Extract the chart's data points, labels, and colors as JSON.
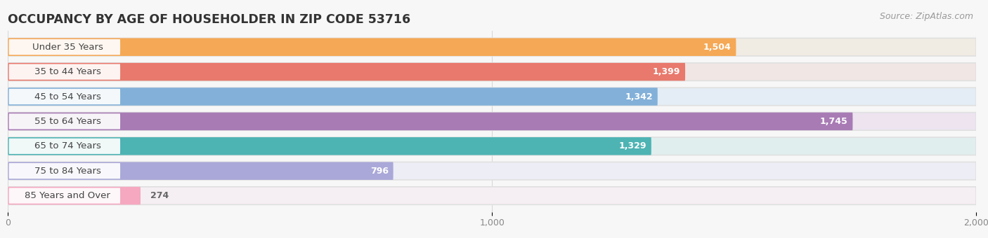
{
  "title": "OCCUPANCY BY AGE OF HOUSEHOLDER IN ZIP CODE 53716",
  "source": "Source: ZipAtlas.com",
  "categories": [
    "Under 35 Years",
    "35 to 44 Years",
    "45 to 54 Years",
    "55 to 64 Years",
    "65 to 74 Years",
    "75 to 84 Years",
    "85 Years and Over"
  ],
  "values": [
    1504,
    1399,
    1342,
    1745,
    1329,
    796,
    274
  ],
  "bar_colors": [
    "#F5A855",
    "#E8796C",
    "#82B0D8",
    "#A87BB5",
    "#4DB3B3",
    "#AAA8D8",
    "#F5A8C0"
  ],
  "bar_bg_colors": [
    "#F0EBE3",
    "#F0E6E4",
    "#E4EDF5",
    "#EDE4F0",
    "#E0EEEE",
    "#EDEDF5",
    "#F5EEF3"
  ],
  "xlim": [
    0,
    2000
  ],
  "xticks": [
    0,
    1000,
    2000
  ],
  "background_color": "#f7f7f7",
  "title_fontsize": 12.5,
  "label_fontsize": 9.5,
  "value_fontsize": 9,
  "source_fontsize": 9,
  "bar_height": 0.72,
  "value_threshold": 500
}
